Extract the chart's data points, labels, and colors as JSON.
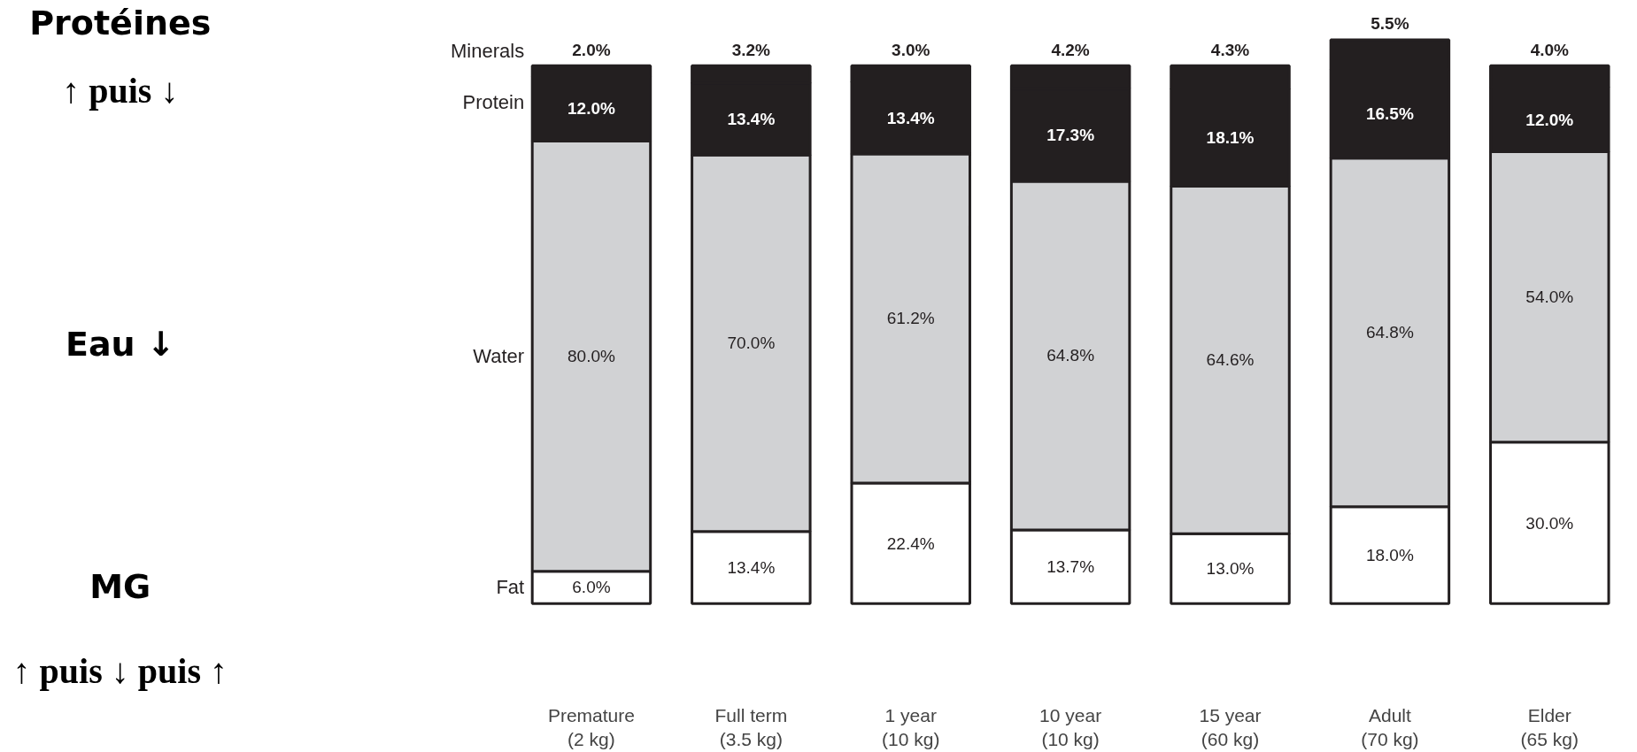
{
  "chart_data": {
    "type": "bar",
    "stacked": true,
    "categories": [
      "Premature\n(2 kg)",
      "Full term\n(3.5 kg)",
      "1 year\n(10 kg)",
      "10 year\n(10 kg)",
      "15 year\n(60 kg)",
      "Adult\n(70 kg)",
      "Elder\n(65 kg)"
    ],
    "series": [
      {
        "name": "Fat",
        "color": "#ffffff",
        "values": [
          6.0,
          13.4,
          22.4,
          13.7,
          13.0,
          18.0,
          30.0
        ],
        "value_labels": [
          "6.0%",
          "13.4%",
          "22.4%",
          "13.7%",
          "13.0%",
          "18.0%",
          "30.0%"
        ]
      },
      {
        "name": "Water",
        "color": "#d1d2d4",
        "values": [
          80.0,
          70.0,
          61.2,
          64.8,
          64.6,
          64.8,
          54.0
        ],
        "value_labels": [
          "80.0%",
          "70.0%",
          "61.2%",
          "64.8%",
          "64.6%",
          "64.8%",
          "54.0%"
        ]
      },
      {
        "name": "Protein",
        "color": "#231f20",
        "values": [
          12.0,
          13.4,
          13.4,
          17.3,
          18.1,
          16.5,
          12.0
        ],
        "value_labels": [
          "12.0%",
          "13.4%",
          "13.4%",
          "17.3%",
          "18.1%",
          "16.5%",
          "12.0%"
        ]
      },
      {
        "name": "Minerals",
        "color": "#231f20",
        "values": [
          2.0,
          3.2,
          3.0,
          4.2,
          4.3,
          5.5,
          4.0
        ],
        "value_labels": [
          "2.0%",
          "3.2%",
          "3.0%",
          "4.2%",
          "4.3%",
          "5.5%",
          "4.0%"
        ]
      }
    ],
    "annotations": [
      "Protéines",
      "↑ puis ↓",
      "Eau ↓",
      "MG",
      "↑ puis ↓ puis ↑"
    ]
  }
}
